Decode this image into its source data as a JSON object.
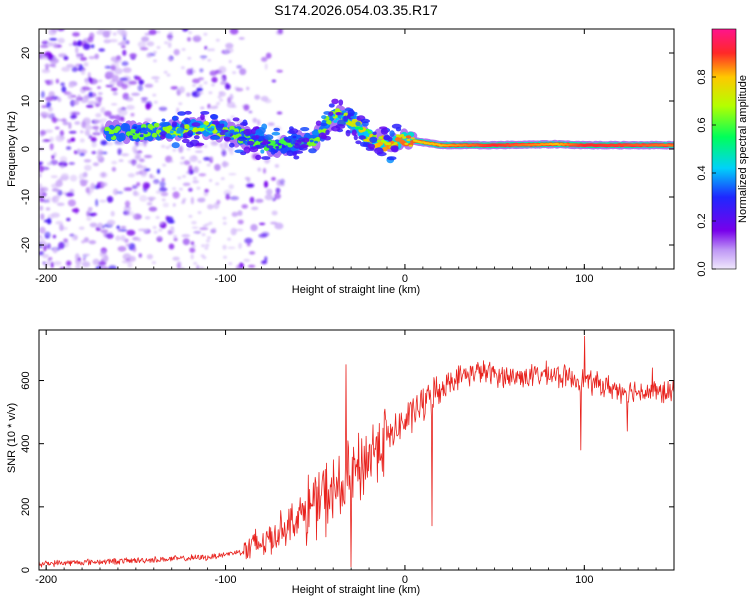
{
  "title": "S174.2026.054.03.35.R17",
  "chart_data": [
    {
      "type": "heatmap",
      "name": "spectrogram",
      "xlabel": "Height of straight line (km)",
      "ylabel": "Frequency (Hz)",
      "xlim": [
        -204,
        150
      ],
      "ylim": [
        -25,
        25
      ],
      "xticks": [
        -200,
        -100,
        0,
        100
      ],
      "yticks": [
        -20,
        -10,
        0,
        10,
        20
      ],
      "xtick_labels": [
        "-200",
        "-100",
        "0",
        "100"
      ],
      "ytick_labels": [
        "-20",
        "-10",
        "0",
        "10",
        "20"
      ],
      "colorbar": {
        "label": "Normalized spectral amplitude",
        "range": [
          0,
          1
        ],
        "ticks": [
          0.0,
          0.2,
          0.4,
          0.6,
          0.8
        ],
        "tick_labels": [
          "0.0",
          "0.2",
          "0.4",
          "0.6",
          "0.8"
        ]
      },
      "ridge": {
        "x": [
          -165,
          -150,
          -130,
          -110,
          -95,
          -80,
          -70,
          -60,
          -50,
          -40,
          -30,
          -20,
          -10,
          0,
          20,
          50,
          85,
          100,
          150
        ],
        "freq": [
          3.5,
          3.5,
          4.0,
          4.5,
          3.0,
          1.5,
          0.5,
          1.5,
          2.0,
          7.0,
          6.0,
          2.5,
          1.0,
          2.0,
          0.8,
          0.8,
          1.0,
          0.8,
          0.8
        ],
        "amplitude": [
          0.35,
          0.3,
          0.4,
          0.45,
          0.35,
          0.3,
          0.25,
          0.3,
          0.35,
          0.4,
          0.5,
          0.6,
          0.7,
          0.75,
          0.8,
          0.9,
          0.8,
          0.9,
          0.85
        ]
      }
    },
    {
      "type": "line",
      "name": "snr",
      "xlabel": "Height of straight line (km)",
      "ylabel": "SNR (10 * v/v)",
      "xlim": [
        -204,
        150
      ],
      "ylim": [
        0,
        760
      ],
      "xticks": [
        -200,
        -100,
        0,
        100
      ],
      "yticks": [
        0,
        200,
        400,
        600
      ],
      "xtick_labels": [
        "-200",
        "-100",
        "0",
        "100"
      ],
      "ytick_labels": [
        "0",
        "200",
        "400",
        "600"
      ],
      "color": "#e8231e",
      "trend": {
        "x": [
          -204,
          -150,
          -110,
          -90,
          -75,
          -60,
          -45,
          -35,
          -25,
          -15,
          -5,
          5,
          15,
          25,
          40,
          60,
          80,
          100,
          120,
          150
        ],
        "y": [
          20,
          30,
          40,
          60,
          100,
          170,
          230,
          260,
          320,
          400,
          440,
          500,
          550,
          600,
          630,
          610,
          620,
          600,
          570,
          560
        ]
      },
      "spikes": [
        {
          "x": -33,
          "y": 650
        },
        {
          "x": -30,
          "y": 10
        },
        {
          "x": 15,
          "y": 140
        },
        {
          "x": 100,
          "y": 740
        },
        {
          "x": 98,
          "y": 380
        },
        {
          "x": 124,
          "y": 440
        },
        {
          "x": 138,
          "y": 640
        }
      ]
    }
  ]
}
